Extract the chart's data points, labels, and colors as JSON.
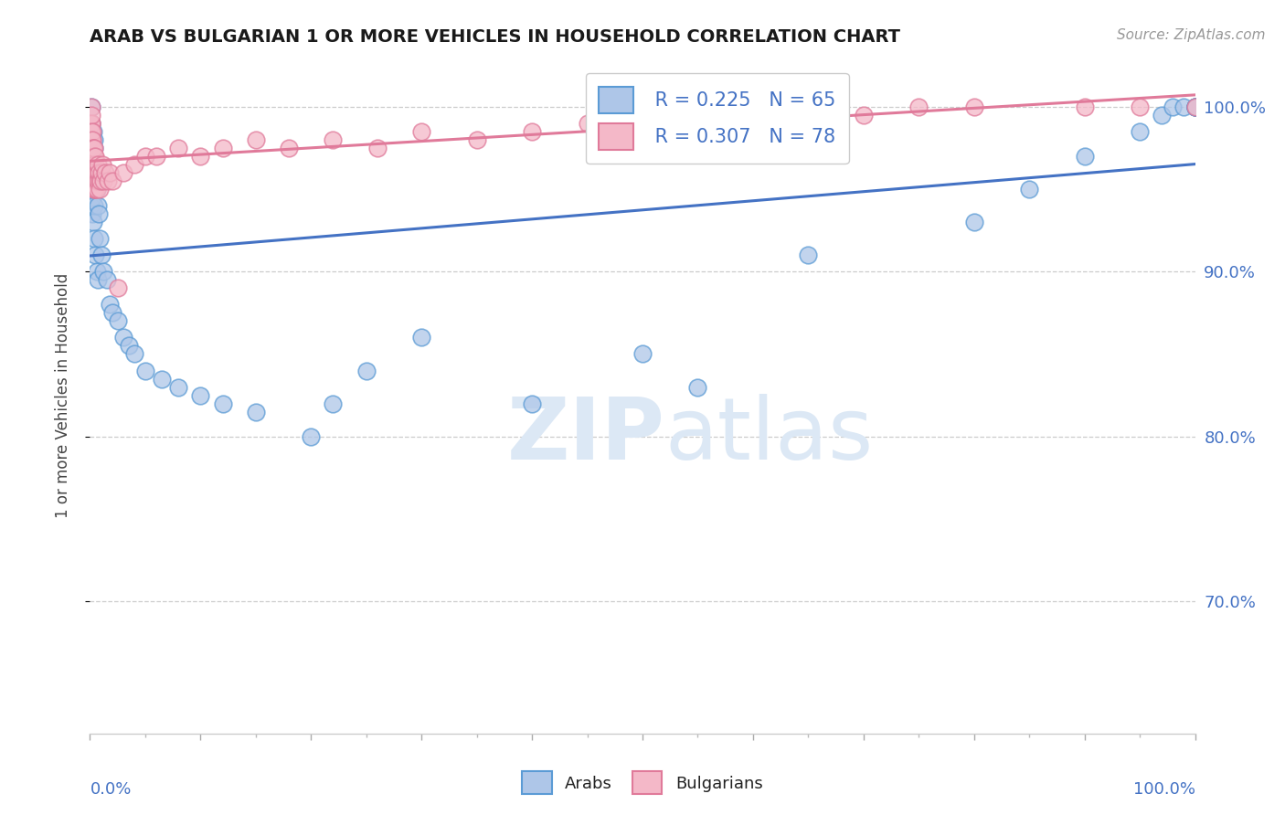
{
  "title": "ARAB VS BULGARIAN 1 OR MORE VEHICLES IN HOUSEHOLD CORRELATION CHART",
  "source": "Source: ZipAtlas.com",
  "ylabel": "1 or more Vehicles in Household",
  "legend_arab_r": "R = 0.225",
  "legend_arab_n": "N = 65",
  "legend_bulg_r": "R = 0.307",
  "legend_bulg_n": "N = 78",
  "arab_color": "#aec6e8",
  "bulg_color": "#f4b8c8",
  "arab_edge_color": "#5b9bd5",
  "bulg_edge_color": "#e07a9a",
  "arab_line_color": "#4472c4",
  "bulg_line_color": "#e07a9a",
  "grid_color": "#cccccc",
  "watermark_color": "#dce8f5",
  "right_tick_color": "#4472c4",
  "xlim": [
    0,
    100
  ],
  "ylim": [
    62,
    103
  ],
  "yticks": [
    70,
    80,
    90,
    100
  ],
  "ytick_labels": [
    "70.0%",
    "80.0%",
    "90.0%",
    "100.0%"
  ],
  "arab_x": [
    0.05,
    0.05,
    0.1,
    0.1,
    0.1,
    0.15,
    0.15,
    0.15,
    0.2,
    0.2,
    0.2,
    0.25,
    0.25,
    0.3,
    0.3,
    0.3,
    0.35,
    0.35,
    0.4,
    0.4,
    0.4,
    0.5,
    0.5,
    0.6,
    0.6,
    0.7,
    0.7,
    0.8,
    0.9,
    1.0,
    1.2,
    1.5,
    1.8,
    2.0,
    2.5,
    3.0,
    3.5,
    4.0,
    5.0,
    6.5,
    8.0,
    10.0,
    12.0,
    15.0,
    20.0,
    22.0,
    25.0,
    30.0,
    40.0,
    50.0,
    55.0,
    65.0,
    80.0,
    85.0,
    90.0,
    95.0,
    97.0,
    98.0,
    99.0,
    100.0,
    100.0,
    100.0,
    100.0,
    100.0,
    100.0
  ],
  "arab_y": [
    94.0,
    97.0,
    96.0,
    98.5,
    100.0,
    95.0,
    97.5,
    99.0,
    93.5,
    96.0,
    98.0,
    94.5,
    97.0,
    93.0,
    96.0,
    98.5,
    94.0,
    97.5,
    92.0,
    95.0,
    98.0,
    91.0,
    96.0,
    90.0,
    95.0,
    89.5,
    94.0,
    93.5,
    92.0,
    91.0,
    90.0,
    89.5,
    88.0,
    87.5,
    87.0,
    86.0,
    85.5,
    85.0,
    84.0,
    83.5,
    83.0,
    82.5,
    82.0,
    81.5,
    80.0,
    82.0,
    84.0,
    86.0,
    82.0,
    85.0,
    83.0,
    91.0,
    93.0,
    95.0,
    97.0,
    98.5,
    99.5,
    100.0,
    100.0,
    100.0,
    100.0,
    100.0,
    100.0,
    100.0,
    100.0
  ],
  "bulg_x": [
    0.02,
    0.03,
    0.04,
    0.05,
    0.06,
    0.07,
    0.08,
    0.09,
    0.1,
    0.1,
    0.12,
    0.12,
    0.14,
    0.15,
    0.15,
    0.17,
    0.18,
    0.2,
    0.2,
    0.22,
    0.25,
    0.25,
    0.27,
    0.3,
    0.3,
    0.32,
    0.35,
    0.35,
    0.38,
    0.4,
    0.4,
    0.42,
    0.45,
    0.48,
    0.5,
    0.5,
    0.55,
    0.6,
    0.65,
    0.7,
    0.75,
    0.8,
    0.85,
    0.9,
    0.95,
    1.0,
    1.1,
    1.2,
    1.4,
    1.6,
    1.8,
    2.0,
    2.5,
    3.0,
    4.0,
    5.0,
    6.0,
    8.0,
    10.0,
    12.0,
    15.0,
    18.0,
    22.0,
    26.0,
    30.0,
    35.0,
    40.0,
    45.0,
    50.0,
    55.0,
    60.0,
    65.0,
    70.0,
    75.0,
    80.0,
    90.0,
    95.0,
    100.0
  ],
  "bulg_y": [
    98.0,
    97.5,
    98.5,
    97.0,
    99.0,
    98.0,
    97.5,
    99.0,
    98.0,
    100.0,
    97.5,
    99.0,
    98.5,
    97.0,
    99.5,
    98.0,
    97.5,
    96.5,
    98.5,
    97.0,
    96.0,
    98.0,
    97.5,
    95.5,
    97.5,
    96.0,
    95.0,
    97.0,
    96.5,
    95.0,
    97.5,
    96.0,
    95.5,
    96.5,
    95.0,
    97.0,
    95.5,
    96.0,
    95.0,
    96.5,
    95.5,
    96.0,
    95.5,
    95.0,
    95.5,
    96.0,
    96.5,
    95.5,
    96.0,
    95.5,
    96.0,
    95.5,
    89.0,
    96.0,
    96.5,
    97.0,
    97.0,
    97.5,
    97.0,
    97.5,
    98.0,
    97.5,
    98.0,
    97.5,
    98.5,
    98.0,
    98.5,
    99.0,
    99.0,
    99.5,
    99.0,
    100.0,
    99.5,
    100.0,
    100.0,
    100.0,
    100.0,
    100.0
  ]
}
